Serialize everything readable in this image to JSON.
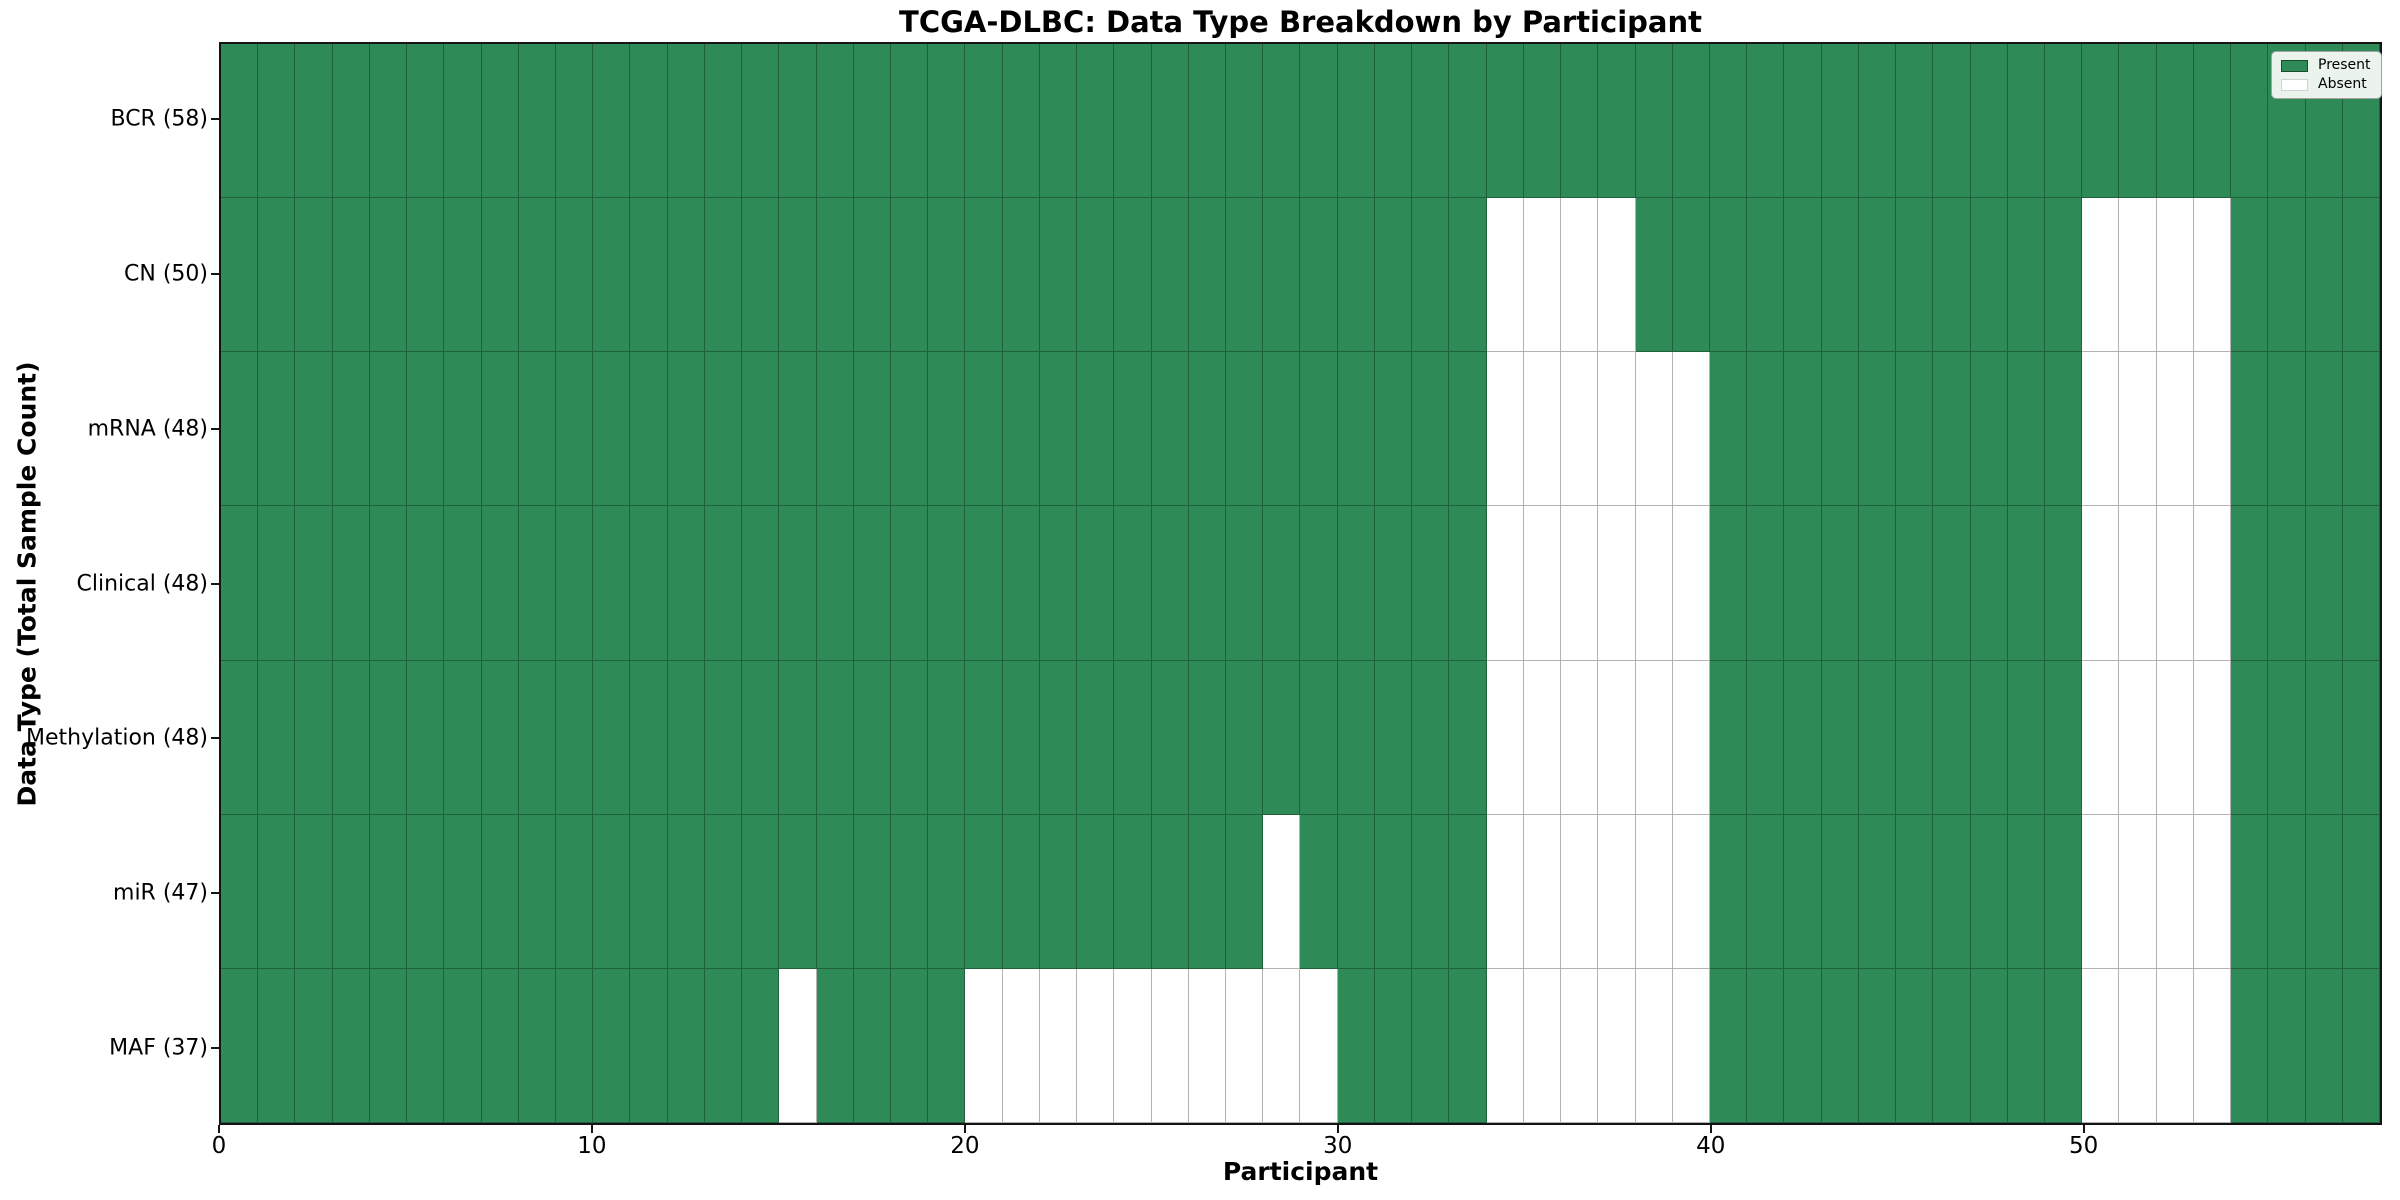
{
  "chart_data": {
    "type": "heatmap",
    "title": "TCGA-DLBC: Data Type Breakdown by Participant",
    "xlabel": "Participant",
    "ylabel": "Data Type (Total Sample Count)",
    "n_participants": 58,
    "x_ticks": [
      0,
      10,
      20,
      30,
      40,
      50
    ],
    "cell_states": [
      "Present",
      "Absent"
    ],
    "colors": {
      "present": "#2e8b57",
      "absent": "#ffffff"
    },
    "legend": [
      {
        "label": "Present",
        "color": "#2e8b57"
      },
      {
        "label": "Absent",
        "color": "#ffffff"
      }
    ],
    "legend_position": "upper right",
    "grid": true,
    "rows": [
      {
        "name": "BCR",
        "label": "BCR (58)",
        "present_count": 58,
        "absent_participants": []
      },
      {
        "name": "CN",
        "label": "CN (50)",
        "present_count": 50,
        "absent_participants": [
          34,
          35,
          36,
          37,
          50,
          51,
          52,
          53
        ]
      },
      {
        "name": "mRNA",
        "label": "mRNA (48)",
        "present_count": 48,
        "absent_participants": [
          34,
          35,
          36,
          37,
          38,
          39,
          50,
          51,
          52,
          53
        ]
      },
      {
        "name": "Clinical",
        "label": "Clinical (48)",
        "present_count": 48,
        "absent_participants": [
          34,
          35,
          36,
          37,
          38,
          39,
          50,
          51,
          52,
          53
        ]
      },
      {
        "name": "Methylation",
        "label": "Methylation (48)",
        "present_count": 48,
        "absent_participants": [
          34,
          35,
          36,
          37,
          38,
          39,
          50,
          51,
          52,
          53
        ]
      },
      {
        "name": "miR",
        "label": "miR (47)",
        "present_count": 47,
        "absent_participants": [
          28,
          34,
          35,
          36,
          37,
          38,
          39,
          50,
          51,
          52,
          53
        ]
      },
      {
        "name": "MAF",
        "label": "MAF (37)",
        "present_count": 37,
        "absent_participants": [
          15,
          20,
          21,
          22,
          23,
          24,
          25,
          26,
          27,
          28,
          29,
          34,
          35,
          36,
          37,
          38,
          39,
          50,
          51,
          52,
          53
        ]
      }
    ]
  }
}
